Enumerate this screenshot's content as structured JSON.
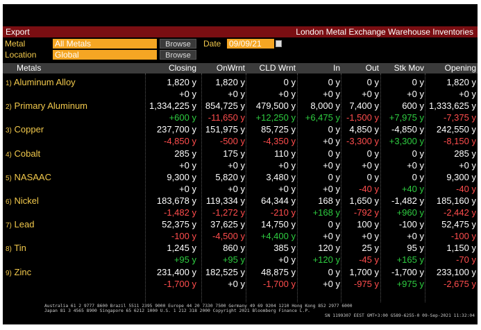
{
  "toolbar": {
    "export_label": "Export",
    "title": "London Metal Exchange Warehouse Inventories"
  },
  "filters": {
    "metal_label": "Metal",
    "metal_value": "All Metals",
    "date_label": "Date",
    "date_value": "09/09/21",
    "location_label": "Location",
    "location_value": "Global",
    "browse_label": "Browse"
  },
  "columns": [
    "Metals",
    "Closing",
    "OnWrnt",
    "CLD Wrnt",
    "In",
    "Out",
    "Stk Mov",
    "Opening"
  ],
  "rows": [
    {
      "num": "1)",
      "name": "Aluminum Alloy",
      "values": [
        "1,820 y",
        "1,820 y",
        "0 y",
        "0 y",
        "0 y",
        "0 y",
        "1,820 y"
      ],
      "changes": [
        "+0 y",
        "+0 y",
        "+0 y",
        "+0 y",
        "+0 y",
        "+0 y",
        "+0 y"
      ]
    },
    {
      "num": "2)",
      "name": "Primary Aluminum",
      "values": [
        "1,334,225 y",
        "854,725 y",
        "479,500 y",
        "8,000 y",
        "7,400 y",
        "600 y",
        "1,333,625 y"
      ],
      "changes": [
        "+600 y",
        "-11,650 y",
        "+12,250 y",
        "+6,475 y",
        "-1,500 y",
        "+7,975 y",
        "-7,375 y"
      ]
    },
    {
      "num": "3)",
      "name": "Copper",
      "values": [
        "237,700 y",
        "151,975 y",
        "85,725 y",
        "0 y",
        "4,850 y",
        "-4,850 y",
        "242,550 y"
      ],
      "changes": [
        "-4,850 y",
        "-500 y",
        "-4,350 y",
        "+0 y",
        "-3,300 y",
        "+3,300 y",
        "-8,150 y"
      ]
    },
    {
      "num": "4)",
      "name": "Cobalt",
      "values": [
        "285 y",
        "175 y",
        "110 y",
        "0 y",
        "0 y",
        "0 y",
        "285 y"
      ],
      "changes": [
        "+0 y",
        "+0 y",
        "+0 y",
        "+0 y",
        "+0 y",
        "+0 y",
        "+0 y"
      ]
    },
    {
      "num": "5)",
      "name": "NASAAC",
      "values": [
        "9,300 y",
        "5,820 y",
        "3,480 y",
        "0 y",
        "0 y",
        "0 y",
        "9,300 y"
      ],
      "changes": [
        "+0 y",
        "+0 y",
        "+0 y",
        "+0 y",
        "-40 y",
        "+40 y",
        "-40 y"
      ]
    },
    {
      "num": "6)",
      "name": "Nickel",
      "values": [
        "183,678 y",
        "119,334 y",
        "64,344 y",
        "168 y",
        "1,650 y",
        "-1,482 y",
        "185,160 y"
      ],
      "changes": [
        "-1,482 y",
        "-1,272 y",
        "-210 y",
        "+168 y",
        "-792 y",
        "+960 y",
        "-2,442 y"
      ]
    },
    {
      "num": "7)",
      "name": "Lead",
      "values": [
        "52,375 y",
        "37,625 y",
        "14,750 y",
        "0 y",
        "100 y",
        "-100 y",
        "52,475 y"
      ],
      "changes": [
        "-100 y",
        "-4,500 y",
        "+4,400 y",
        "+0 y",
        "+0 y",
        "+0 y",
        "-100 y"
      ]
    },
    {
      "num": "8)",
      "name": "Tin",
      "values": [
        "1,245 y",
        "860 y",
        "385 y",
        "120 y",
        "25 y",
        "95 y",
        "1,150 y"
      ],
      "changes": [
        "+95 y",
        "+95 y",
        "+0 y",
        "+120 y",
        "-45 y",
        "+165 y",
        "-70 y"
      ]
    },
    {
      "num": "9)",
      "name": "Zinc",
      "values": [
        "231,400 y",
        "182,525 y",
        "48,875 y",
        "0 y",
        "1,700 y",
        "-1,700 y",
        "233,100 y"
      ],
      "changes": [
        "-1,700 y",
        "+0 y",
        "-1,700 y",
        "+0 y",
        "-975 y",
        "+975 y",
        "-2,675 y"
      ]
    }
  ],
  "footer": {
    "line1": "Australia 61 2 9777 8600 Brazil 5511 2395 9000 Europe 44 20 7330 7500 Germany 49 69 9204 1210 Hong Kong 852 2977 6000",
    "line2": "Japan 81 3 4565 8900        Singapore 65 6212 1000        U.S. 1 212 318 2000           Copyright 2021 Bloomberg Finance L.P.",
    "line3": "SN 1199307 EEST GMT+3:00 G589-6255-0 09-Sep-2021 11:32:04"
  },
  "colors": {
    "positive": "#2ecc40",
    "negative": "#ff4d4d",
    "label": "#f2c94c",
    "bar": "#7a0e12",
    "field": "#f5a623"
  }
}
